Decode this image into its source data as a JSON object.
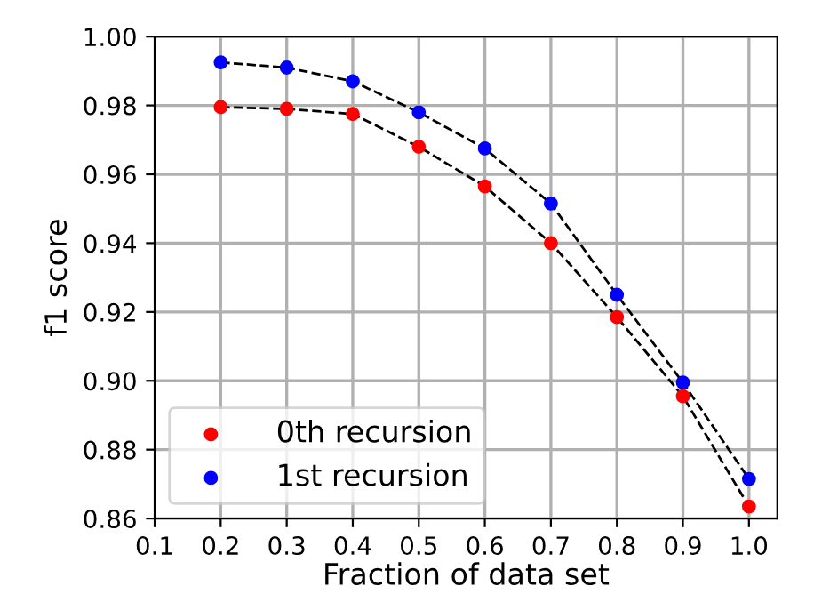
{
  "chart_data": {
    "type": "scatter",
    "xlabel": "Fraction of data set",
    "ylabel": "f1 score",
    "x": [
      0.2,
      0.3,
      0.4,
      0.5,
      0.6,
      0.7,
      0.8,
      0.9,
      1.0
    ],
    "series": [
      {
        "type": "line",
        "color": "#000000",
        "line_style": "dashed",
        "marker": "none",
        "values": [
          0.9795,
          0.979,
          0.9775,
          0.968,
          0.9565,
          0.94,
          0.9185,
          0.8955,
          0.8635
        ]
      },
      {
        "type": "line",
        "color": "#000000",
        "line_style": "dashed",
        "marker": "none",
        "values": [
          0.9925,
          0.991,
          0.987,
          0.978,
          0.9675,
          0.9515,
          0.925,
          0.8995,
          0.8715
        ]
      },
      {
        "name": "0th recursion",
        "color": "#ff0000",
        "marker": "circle",
        "values": [
          0.9795,
          0.979,
          0.9775,
          0.968,
          0.9565,
          0.94,
          0.9185,
          0.8955,
          0.8635
        ]
      },
      {
        "name": "1st recursion",
        "color": "#0000ff",
        "marker": "circle",
        "values": [
          0.9925,
          0.991,
          0.987,
          0.978,
          0.9675,
          0.9515,
          0.925,
          0.8995,
          0.8715
        ]
      }
    ],
    "xlim": [
      0.1,
      1.043
    ],
    "xticks": [
      {
        "value": 0.1,
        "label": "0.1"
      },
      {
        "value": 0.2,
        "label": "0.2"
      },
      {
        "value": 0.3,
        "label": "0.3"
      },
      {
        "value": 0.4,
        "label": "0.4"
      },
      {
        "value": 0.5,
        "label": "0.5"
      },
      {
        "value": 0.6,
        "label": "0.6"
      },
      {
        "value": 0.7,
        "label": "0.7"
      },
      {
        "value": 0.8,
        "label": "0.8"
      },
      {
        "value": 0.9,
        "label": "0.9"
      },
      {
        "value": 1.0,
        "label": "1.0"
      }
    ],
    "ylim": [
      0.86,
      1.0
    ],
    "yticks": [
      {
        "value": 0.86,
        "label": "0.86"
      },
      {
        "value": 0.88,
        "label": "0.88"
      },
      {
        "value": 0.9,
        "label": "0.90"
      },
      {
        "value": 0.92,
        "label": "0.92"
      },
      {
        "value": 0.94,
        "label": "0.94"
      },
      {
        "value": 0.96,
        "label": "0.96"
      },
      {
        "value": 0.98,
        "label": "0.98"
      },
      {
        "value": 1.0,
        "label": "1.00"
      }
    ],
    "grid": true,
    "legend": "bottom left"
  }
}
